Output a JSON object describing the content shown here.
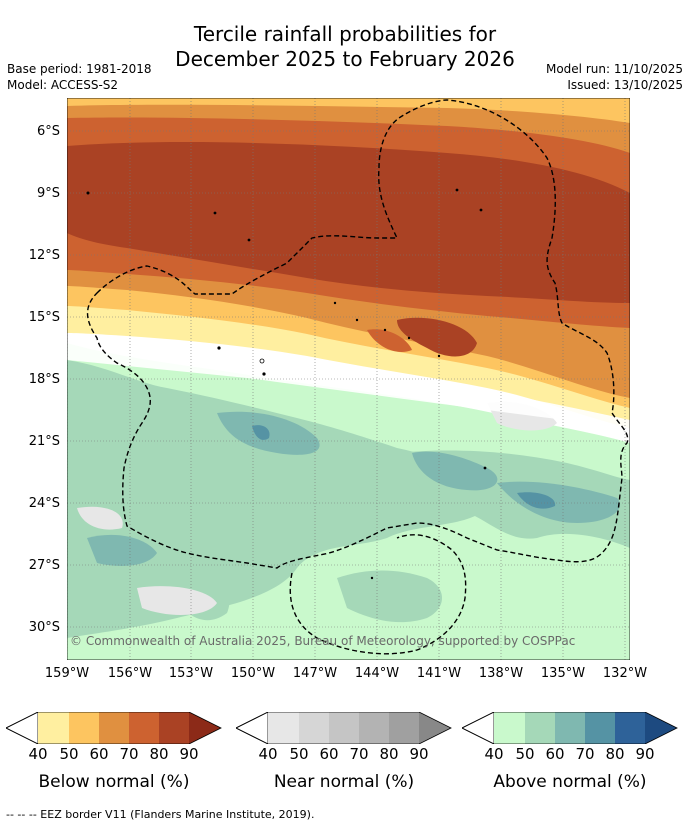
{
  "title": {
    "line1": "Tercile rainfall probabilities for",
    "line2": "December 2025 to February 2026"
  },
  "meta_left": {
    "base_period": "Base period: 1981-2018",
    "model": "Model: ACCESS-S2"
  },
  "meta_right": {
    "model_run": "Model run: 11/10/2025",
    "issued": "Issued: 13/10/2025"
  },
  "axes": {
    "lat_labels": [
      "6°S",
      "9°S",
      "12°S",
      "15°S",
      "18°S",
      "21°S",
      "24°S",
      "27°S",
      "30°S"
    ],
    "lon_labels": [
      "159°W",
      "156°W",
      "153°W",
      "150°W",
      "147°W",
      "144°W",
      "141°W",
      "138°W",
      "135°W",
      "132°W"
    ]
  },
  "copyright": "© Commonwealth of Australia 2025, Bureau of Meteorology, supported by COSPPac",
  "colorbars": [
    {
      "label": "Below normal (%)",
      "colors": [
        "#ffefa0",
        "#fdc560",
        "#e09040",
        "#cd6230",
        "#aa4224",
        "#8c2a18"
      ],
      "ticks": [
        "40",
        "50",
        "60",
        "70",
        "80",
        "90"
      ]
    },
    {
      "label": "Near normal (%)",
      "colors": [
        "#e7e7e7",
        "#d6d6d6",
        "#c5c5c5",
        "#b3b3b3",
        "#a0a0a0",
        "#888888"
      ],
      "ticks": [
        "40",
        "50",
        "60",
        "70",
        "80",
        "90"
      ]
    },
    {
      "label": "Above normal (%)",
      "colors": [
        "#c9f9cc",
        "#a5d8b8",
        "#7fb8b0",
        "#5593a4",
        "#2e6299",
        "#1d4a80"
      ],
      "ticks": [
        "40",
        "50",
        "60",
        "70",
        "80",
        "90"
      ]
    }
  ],
  "footnote": "-- -- -- EEZ border V11 (Flanders Marine Institute, 2019)."
}
